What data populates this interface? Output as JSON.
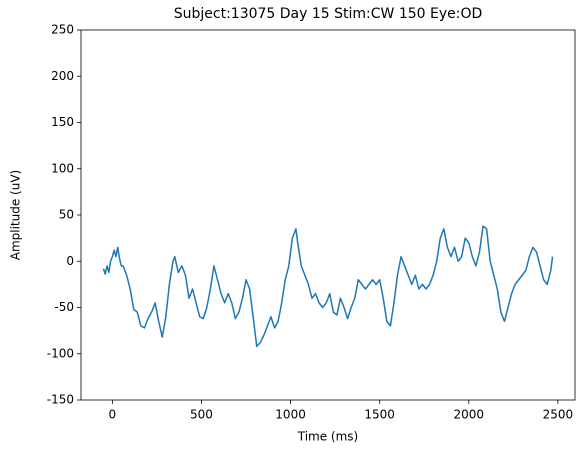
{
  "chart_data": {
    "type": "line",
    "title": "Subject:13075 Day 15 Stim:CW 150 Eye:OD",
    "xlabel": "Time (ms)",
    "ylabel": "Amplitude (uV)",
    "xlim": [
      -176,
      2596
    ],
    "ylim": [
      -150,
      250
    ],
    "xticks": [
      0,
      500,
      1000,
      1500,
      2000,
      2500
    ],
    "yticks": [
      -150,
      -100,
      -50,
      0,
      50,
      100,
      150,
      200,
      250
    ],
    "x": [
      -50,
      -40,
      -30,
      -20,
      -10,
      0,
      10,
      20,
      30,
      40,
      50,
      60,
      80,
      100,
      120,
      140,
      160,
      180,
      200,
      220,
      240,
      260,
      280,
      300,
      320,
      340,
      350,
      370,
      390,
      410,
      430,
      450,
      470,
      490,
      510,
      530,
      550,
      570,
      590,
      610,
      630,
      650,
      670,
      690,
      710,
      730,
      750,
      770,
      790,
      810,
      830,
      850,
      870,
      890,
      910,
      930,
      950,
      970,
      990,
      1010,
      1030,
      1040,
      1060,
      1080,
      1100,
      1120,
      1140,
      1160,
      1180,
      1200,
      1220,
      1240,
      1260,
      1280,
      1300,
      1320,
      1340,
      1360,
      1380,
      1400,
      1420,
      1440,
      1460,
      1480,
      1500,
      1520,
      1540,
      1560,
      1580,
      1600,
      1620,
      1640,
      1660,
      1680,
      1700,
      1720,
      1740,
      1760,
      1780,
      1800,
      1820,
      1840,
      1860,
      1880,
      1900,
      1920,
      1940,
      1960,
      1980,
      2000,
      2020,
      2040,
      2060,
      2080,
      2100,
      2120,
      2140,
      2160,
      2180,
      2200,
      2220,
      2240,
      2260,
      2280,
      2300,
      2320,
      2340,
      2360,
      2380,
      2400,
      2420,
      2440,
      2460,
      2470
    ],
    "series": [
      {
        "color": "#1f77b4",
        "values": [
          -8,
          -14,
          -5,
          -12,
          0,
          5,
          12,
          5,
          15,
          3,
          -5,
          -5,
          -15,
          -30,
          -52,
          -55,
          -70,
          -72,
          -62,
          -55,
          -45,
          -65,
          -82,
          -60,
          -25,
          0,
          5,
          -12,
          -5,
          -15,
          -40,
          -30,
          -45,
          -60,
          -62,
          -50,
          -30,
          -5,
          -20,
          -35,
          -45,
          -35,
          -45,
          -62,
          -55,
          -40,
          -20,
          -30,
          -60,
          -92,
          -88,
          -80,
          -70,
          -60,
          -72,
          -65,
          -45,
          -20,
          -5,
          25,
          35,
          20,
          -5,
          -15,
          -25,
          -40,
          -35,
          -45,
          -50,
          -45,
          -35,
          -55,
          -58,
          -40,
          -50,
          -62,
          -50,
          -40,
          -20,
          -25,
          -30,
          -25,
          -20,
          -25,
          -20,
          -40,
          -65,
          -70,
          -45,
          -15,
          5,
          -5,
          -15,
          -25,
          -15,
          -30,
          -25,
          -30,
          -25,
          -15,
          0,
          25,
          35,
          15,
          5,
          15,
          0,
          5,
          25,
          20,
          5,
          -5,
          10,
          38,
          35,
          0,
          -15,
          -30,
          -55,
          -65,
          -50,
          -35,
          -25,
          -20,
          -15,
          -10,
          5,
          15,
          10,
          -5,
          -20,
          -25,
          -10,
          5
        ]
      }
    ]
  }
}
